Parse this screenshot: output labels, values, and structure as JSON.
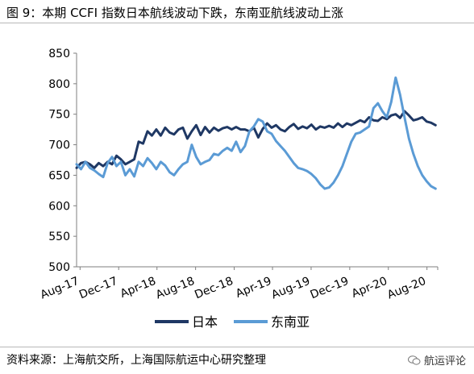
{
  "header": {
    "title": "图 9：本期 CCFI 指数日本航线波动下跌，东南亚航线波动上涨"
  },
  "footer": {
    "source": "资料来源：上海航交所，上海国际航运中心研究整理",
    "brand": "航运评论",
    "brand_icon": "wechat-icon"
  },
  "colors": {
    "japan": "#1f3864",
    "sea": "#5b9bd5",
    "axis": "#7f7f7f"
  },
  "chart_data": {
    "type": "line",
    "title": "",
    "xlabel": "",
    "ylabel": "",
    "ylim": [
      500,
      850
    ],
    "yticks": [
      500,
      550,
      600,
      650,
      700,
      750,
      800,
      850
    ],
    "xlim": [
      "2017-07-21",
      "2020-09-04"
    ],
    "xticks": [
      {
        "date": "2017-08-01",
        "label": "Aug-17"
      },
      {
        "date": "2017-12-01",
        "label": "Dec-17"
      },
      {
        "date": "2018-04-01",
        "label": "Apr-18"
      },
      {
        "date": "2018-08-01",
        "label": "Aug-18"
      },
      {
        "date": "2018-12-01",
        "label": "Dec-18"
      },
      {
        "date": "2019-04-01",
        "label": "Apr-19"
      },
      {
        "date": "2019-08-01",
        "label": "Aug-19"
      },
      {
        "date": "2019-12-01",
        "label": "Dec-19"
      },
      {
        "date": "2020-04-01",
        "label": "Apr-20"
      },
      {
        "date": "2020-08-01",
        "label": "Aug-20"
      }
    ],
    "grid": false,
    "legend": "bottom",
    "series": [
      {
        "name": "日本",
        "points": [
          [
            "2017-07-21",
            662
          ],
          [
            "2017-08-04",
            670
          ],
          [
            "2017-08-18",
            672
          ],
          [
            "2017-09-01",
            668
          ],
          [
            "2017-09-15",
            662
          ],
          [
            "2017-09-29",
            670
          ],
          [
            "2017-10-13",
            665
          ],
          [
            "2017-10-27",
            672
          ],
          [
            "2017-11-10",
            668
          ],
          [
            "2017-11-24",
            682
          ],
          [
            "2017-12-08",
            676
          ],
          [
            "2017-12-22",
            668
          ],
          [
            "2018-01-05",
            672
          ],
          [
            "2018-01-19",
            676
          ],
          [
            "2018-02-02",
            705
          ],
          [
            "2018-02-16",
            702
          ],
          [
            "2018-03-02",
            722
          ],
          [
            "2018-03-16",
            715
          ],
          [
            "2018-03-30",
            725
          ],
          [
            "2018-04-13",
            715
          ],
          [
            "2018-04-27",
            728
          ],
          [
            "2018-05-11",
            720
          ],
          [
            "2018-05-25",
            717
          ],
          [
            "2018-06-08",
            725
          ],
          [
            "2018-06-22",
            728
          ],
          [
            "2018-07-06",
            710
          ],
          [
            "2018-07-20",
            722
          ],
          [
            "2018-08-03",
            732
          ],
          [
            "2018-08-17",
            716
          ],
          [
            "2018-08-31",
            729
          ],
          [
            "2018-09-14",
            720
          ],
          [
            "2018-09-28",
            728
          ],
          [
            "2018-10-12",
            723
          ],
          [
            "2018-10-26",
            727
          ],
          [
            "2018-11-09",
            729
          ],
          [
            "2018-11-23",
            725
          ],
          [
            "2018-12-07",
            729
          ],
          [
            "2018-12-21",
            725
          ],
          [
            "2019-01-04",
            725
          ],
          [
            "2019-01-18",
            722
          ],
          [
            "2019-02-01",
            728
          ],
          [
            "2019-02-15",
            712
          ],
          [
            "2019-03-01",
            726
          ],
          [
            "2019-03-15",
            735
          ],
          [
            "2019-03-29",
            728
          ],
          [
            "2019-04-12",
            732
          ],
          [
            "2019-04-26",
            725
          ],
          [
            "2019-05-10",
            722
          ],
          [
            "2019-05-24",
            729
          ],
          [
            "2019-06-07",
            734
          ],
          [
            "2019-06-21",
            726
          ],
          [
            "2019-07-05",
            730
          ],
          [
            "2019-07-19",
            727
          ],
          [
            "2019-08-02",
            733
          ],
          [
            "2019-08-16",
            725
          ],
          [
            "2019-08-30",
            730
          ],
          [
            "2019-09-13",
            728
          ],
          [
            "2019-09-27",
            731
          ],
          [
            "2019-10-11",
            728
          ],
          [
            "2019-10-25",
            735
          ],
          [
            "2019-11-08",
            729
          ],
          [
            "2019-11-22",
            735
          ],
          [
            "2019-12-06",
            732
          ],
          [
            "2019-12-20",
            736
          ],
          [
            "2020-01-03",
            740
          ],
          [
            "2020-01-17",
            737
          ],
          [
            "2020-01-31",
            745
          ],
          [
            "2020-02-14",
            740
          ],
          [
            "2020-02-28",
            739
          ],
          [
            "2020-03-13",
            745
          ],
          [
            "2020-03-27",
            742
          ],
          [
            "2020-04-10",
            748
          ],
          [
            "2020-04-24",
            750
          ],
          [
            "2020-05-08",
            744
          ],
          [
            "2020-05-22",
            755
          ],
          [
            "2020-06-05",
            748
          ],
          [
            "2020-06-19",
            740
          ],
          [
            "2020-07-03",
            742
          ],
          [
            "2020-07-17",
            745
          ],
          [
            "2020-07-31",
            738
          ],
          [
            "2020-08-14",
            736
          ],
          [
            "2020-08-28",
            732
          ]
        ]
      },
      {
        "name": "东南亚",
        "points": [
          [
            "2017-07-21",
            668
          ],
          [
            "2017-08-04",
            660
          ],
          [
            "2017-08-18",
            672
          ],
          [
            "2017-09-01",
            662
          ],
          [
            "2017-09-15",
            658
          ],
          [
            "2017-09-29",
            652
          ],
          [
            "2017-10-13",
            647
          ],
          [
            "2017-10-27",
            670
          ],
          [
            "2017-11-10",
            680
          ],
          [
            "2017-11-24",
            665
          ],
          [
            "2017-12-08",
            672
          ],
          [
            "2017-12-22",
            650
          ],
          [
            "2018-01-05",
            660
          ],
          [
            "2018-01-19",
            648
          ],
          [
            "2018-02-02",
            672
          ],
          [
            "2018-02-16",
            665
          ],
          [
            "2018-03-02",
            678
          ],
          [
            "2018-03-16",
            670
          ],
          [
            "2018-03-30",
            660
          ],
          [
            "2018-04-13",
            672
          ],
          [
            "2018-04-27",
            666
          ],
          [
            "2018-05-11",
            655
          ],
          [
            "2018-05-25",
            650
          ],
          [
            "2018-06-08",
            660
          ],
          [
            "2018-06-22",
            668
          ],
          [
            "2018-07-06",
            672
          ],
          [
            "2018-07-20",
            700
          ],
          [
            "2018-08-03",
            680
          ],
          [
            "2018-08-17",
            668
          ],
          [
            "2018-08-31",
            672
          ],
          [
            "2018-09-14",
            675
          ],
          [
            "2018-09-28",
            685
          ],
          [
            "2018-10-12",
            683
          ],
          [
            "2018-10-26",
            690
          ],
          [
            "2018-11-09",
            695
          ],
          [
            "2018-11-23",
            690
          ],
          [
            "2018-12-07",
            705
          ],
          [
            "2018-12-21",
            688
          ],
          [
            "2019-01-04",
            698
          ],
          [
            "2019-01-18",
            722
          ],
          [
            "2019-02-01",
            730
          ],
          [
            "2019-02-15",
            742
          ],
          [
            "2019-03-01",
            738
          ],
          [
            "2019-03-15",
            722
          ],
          [
            "2019-03-29",
            718
          ],
          [
            "2019-04-12",
            706
          ],
          [
            "2019-04-26",
            698
          ],
          [
            "2019-05-10",
            690
          ],
          [
            "2019-05-24",
            680
          ],
          [
            "2019-06-07",
            670
          ],
          [
            "2019-06-21",
            662
          ],
          [
            "2019-07-05",
            660
          ],
          [
            "2019-07-19",
            657
          ],
          [
            "2019-08-02",
            652
          ],
          [
            "2019-08-16",
            645
          ],
          [
            "2019-08-30",
            635
          ],
          [
            "2019-09-13",
            628
          ],
          [
            "2019-09-27",
            630
          ],
          [
            "2019-10-11",
            638
          ],
          [
            "2019-10-25",
            650
          ],
          [
            "2019-11-08",
            665
          ],
          [
            "2019-11-22",
            685
          ],
          [
            "2019-12-06",
            705
          ],
          [
            "2019-12-20",
            718
          ],
          [
            "2020-01-03",
            720
          ],
          [
            "2020-01-17",
            725
          ],
          [
            "2020-01-31",
            730
          ],
          [
            "2020-02-14",
            760
          ],
          [
            "2020-02-28",
            768
          ],
          [
            "2020-03-13",
            755
          ],
          [
            "2020-03-27",
            745
          ],
          [
            "2020-04-10",
            770
          ],
          [
            "2020-04-24",
            810
          ],
          [
            "2020-05-08",
            782
          ],
          [
            "2020-05-22",
            745
          ],
          [
            "2020-06-05",
            710
          ],
          [
            "2020-06-19",
            685
          ],
          [
            "2020-07-03",
            665
          ],
          [
            "2020-07-17",
            650
          ],
          [
            "2020-07-31",
            640
          ],
          [
            "2020-08-14",
            632
          ],
          [
            "2020-08-28",
            628
          ]
        ]
      }
    ]
  }
}
